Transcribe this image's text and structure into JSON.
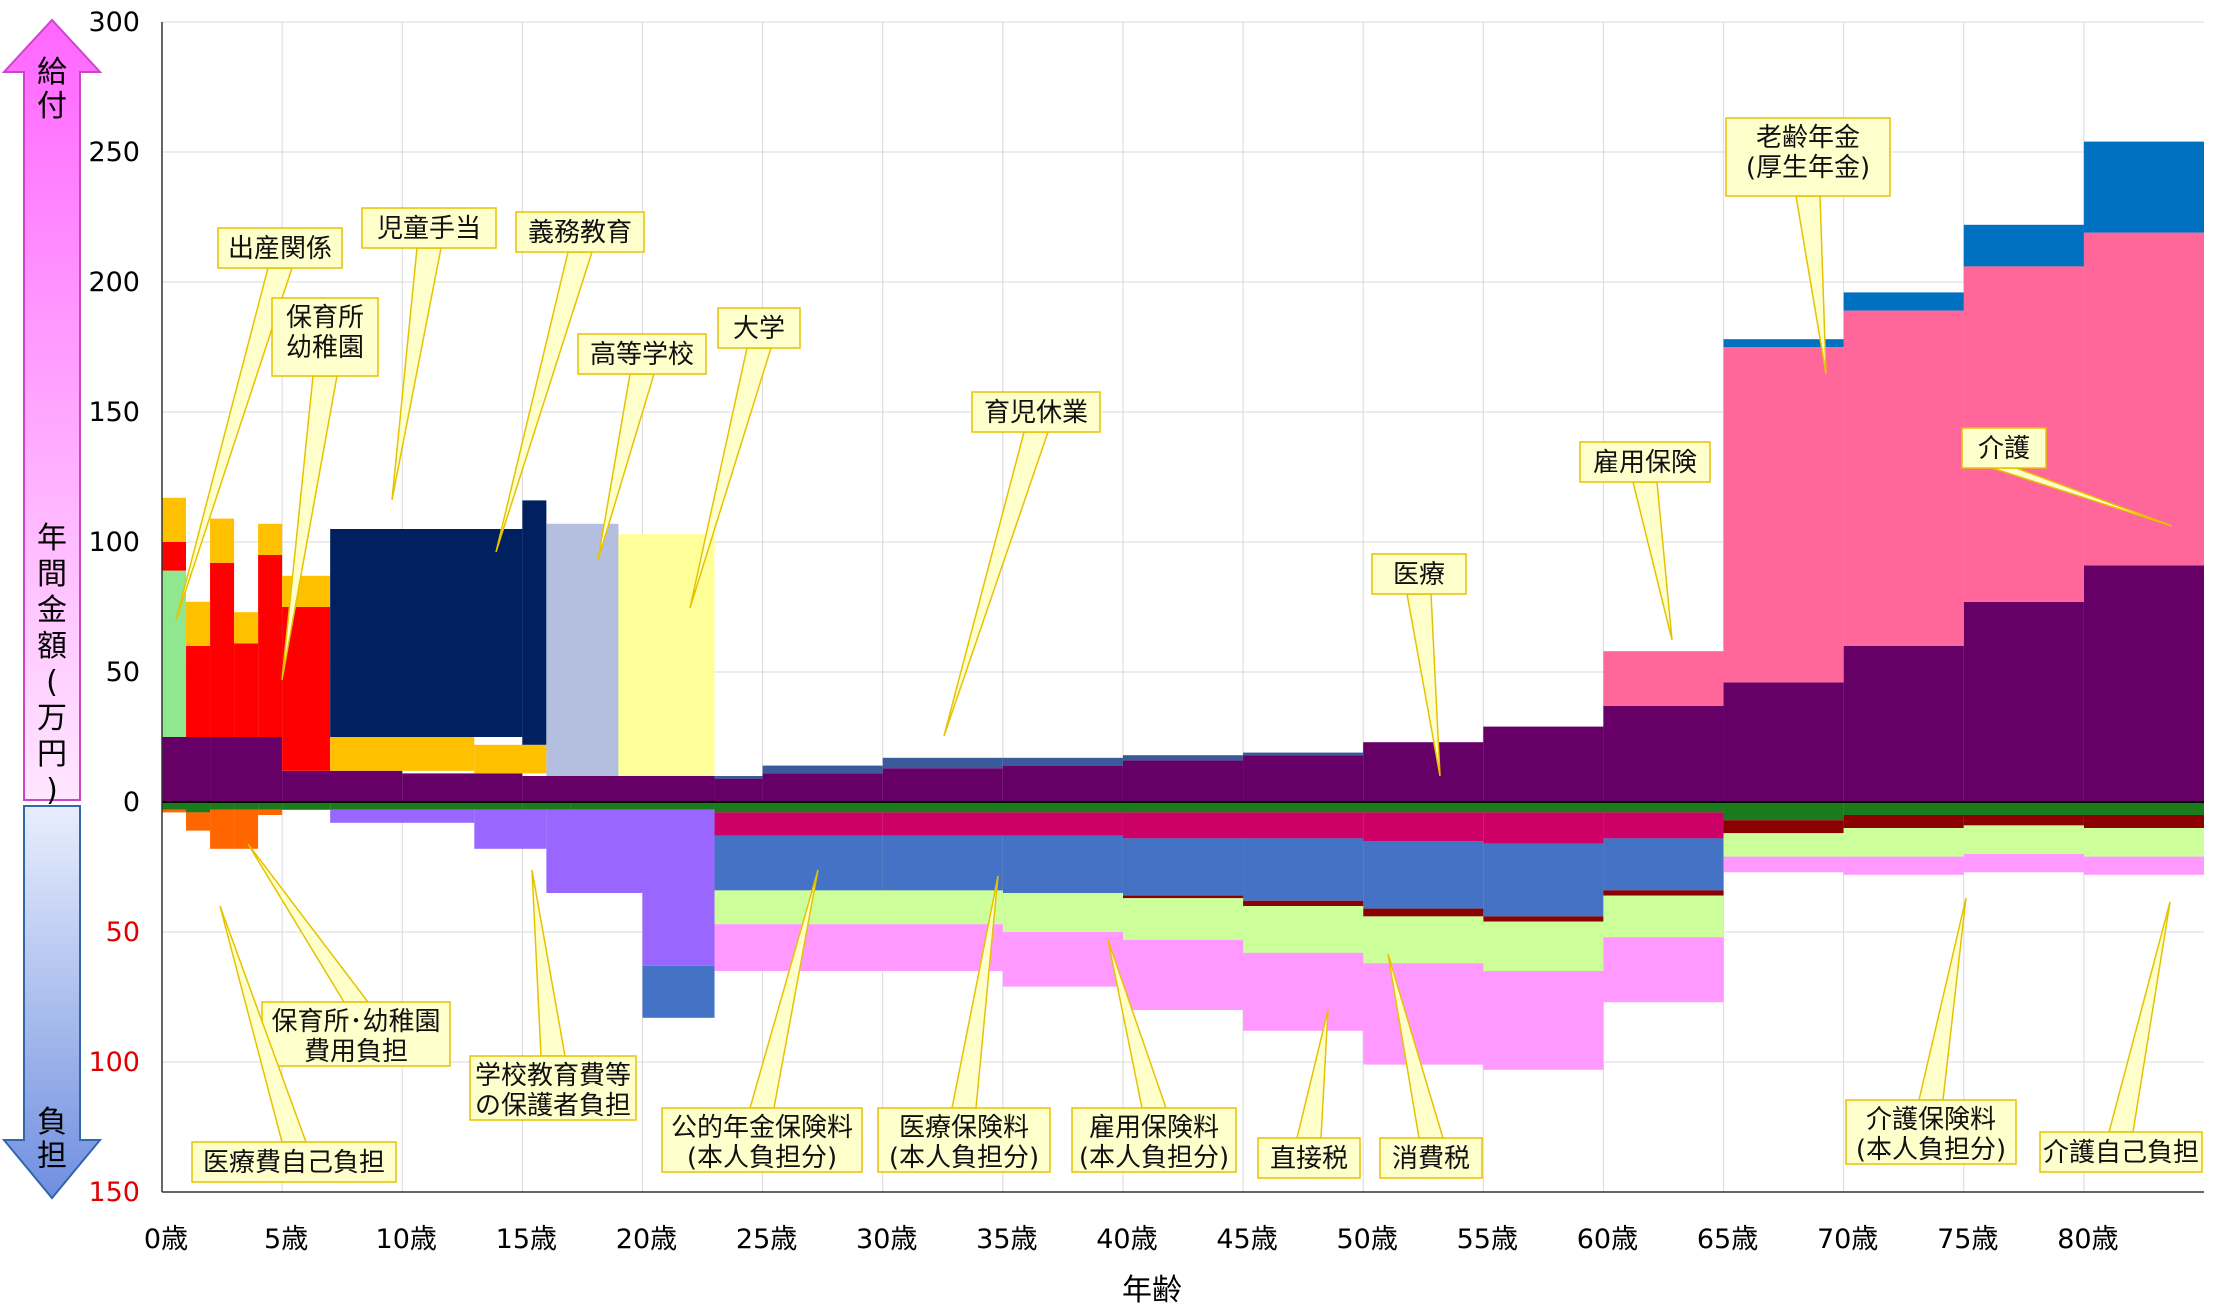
{
  "chart_data": {
    "type": "bar",
    "subtype": "stacked-area-steps-by-age",
    "xlabel": "年齢",
    "ylabel": "年間金額(万円)",
    "positive_label": "給付",
    "negative_label": "負担",
    "ylim": [
      -150,
      300
    ],
    "y_ticks_positive": [
      "300",
      "250",
      "200",
      "150",
      "100",
      "50",
      "0"
    ],
    "y_ticks_negative": [
      "50",
      "100",
      "150"
    ],
    "x_ticks": [
      "0歳",
      "5歳",
      "10歳",
      "15歳",
      "20歳",
      "25歳",
      "30歳",
      "35歳",
      "40歳",
      "45歳",
      "50歳",
      "55歳",
      "60歳",
      "65歳",
      "70歳",
      "75歳",
      "80歳"
    ],
    "x_range": [
      0,
      85
    ],
    "grid": true,
    "colors": {
      "medical": "#660066",
      "birth": "#8fe88f",
      "nursery": "#ff0000",
      "child_allowance": "#ffc000",
      "compulsory_edu": "#002060",
      "high_school": "#b4bfe0",
      "university": "#ffff99",
      "childcare_leave": "#3a5a9a",
      "unemployment": "#ff6699",
      "pension": "#ff6699",
      "pension_top": "#ff6699",
      "nursing": "#0070c0",
      "med_copay": "#1b7a1b",
      "nursery_fee": "#ff6600",
      "school_fee": "#9966ff",
      "pension_premium": "#cc0066",
      "health_premium": "#4472c4",
      "direct_tax": "#8b0000",
      "emp_premium": "#ccff99",
      "consumption_tax": "#ff99ff",
      "nursing_premium": "#e6e6e6"
    },
    "positive_series": [
      {
        "key": "medical",
        "segments": [
          [
            0,
            2,
            25
          ],
          [
            2,
            5,
            25
          ],
          [
            5,
            10,
            12
          ],
          [
            10,
            15,
            11
          ],
          [
            15,
            20,
            10
          ],
          [
            20,
            23,
            10
          ],
          [
            23,
            25,
            9
          ],
          [
            25,
            30,
            11
          ],
          [
            30,
            35,
            13
          ],
          [
            35,
            40,
            14
          ],
          [
            40,
            45,
            16
          ],
          [
            45,
            50,
            18
          ],
          [
            50,
            55,
            23
          ],
          [
            55,
            60,
            29
          ],
          [
            60,
            65,
            37
          ],
          [
            65,
            70,
            46
          ],
          [
            70,
            75,
            60
          ],
          [
            75,
            80,
            77
          ],
          [
            80,
            85,
            91
          ]
        ]
      },
      {
        "key": "birth",
        "segments": [
          [
            0,
            1,
            64
          ]
        ]
      },
      {
        "key": "nursery",
        "segments": [
          [
            0,
            1,
            11
          ],
          [
            1,
            2,
            35
          ],
          [
            2,
            3,
            67
          ],
          [
            3,
            4,
            36
          ],
          [
            4,
            5,
            70
          ],
          [
            5,
            7,
            63
          ]
        ]
      },
      {
        "key": "child_allowance",
        "segments": [
          [
            0,
            1,
            17
          ],
          [
            1,
            2,
            17
          ],
          [
            2,
            3,
            17
          ],
          [
            3,
            4,
            12
          ],
          [
            4,
            5,
            12
          ],
          [
            5,
            7,
            12
          ],
          [
            7,
            13,
            13
          ],
          [
            13,
            16,
            11
          ]
        ]
      },
      {
        "key": "compulsory_edu",
        "segments": [
          [
            7,
            15,
            80
          ],
          [
            15,
            16,
            94
          ]
        ]
      },
      {
        "key": "high_school",
        "segments": [
          [
            16,
            19,
            97
          ]
        ]
      },
      {
        "key": "university",
        "segments": [
          [
            19,
            23,
            93
          ]
        ]
      },
      {
        "key": "childcare_leave",
        "segments": [
          [
            23,
            25,
            1
          ],
          [
            25,
            30,
            3
          ],
          [
            30,
            35,
            4
          ],
          [
            35,
            40,
            3
          ],
          [
            40,
            45,
            2
          ],
          [
            45,
            50,
            1
          ]
        ]
      },
      {
        "key": "unemployment",
        "segments": [
          [
            60,
            65,
            21
          ]
        ]
      },
      {
        "key": "pension",
        "segments": [
          [
            65,
            70,
            129
          ],
          [
            70,
            75,
            129
          ],
          [
            75,
            80,
            129
          ],
          [
            80,
            85,
            128
          ]
        ]
      },
      {
        "key": "nursing",
        "segments": [
          [
            65,
            70,
            3
          ],
          [
            70,
            75,
            7
          ],
          [
            75,
            80,
            16
          ],
          [
            80,
            85,
            35
          ]
        ]
      }
    ],
    "negative_series": [
      {
        "key": "med_copay",
        "segments": [
          [
            0,
            1,
            3
          ],
          [
            1,
            2,
            4
          ],
          [
            2,
            3,
            3
          ],
          [
            3,
            4,
            3
          ],
          [
            4,
            5,
            3
          ],
          [
            5,
            7,
            3
          ],
          [
            7,
            15,
            3
          ],
          [
            15,
            17,
            3
          ],
          [
            17,
            23,
            3
          ],
          [
            23,
            65,
            4
          ],
          [
            65,
            70,
            7
          ],
          [
            70,
            85,
            5
          ]
        ]
      },
      {
        "key": "nursery_fee",
        "segments": [
          [
            0,
            1,
            1
          ],
          [
            1,
            2,
            7
          ],
          [
            2,
            3,
            15
          ],
          [
            3,
            4,
            15
          ],
          [
            4,
            5,
            2
          ],
          [
            5,
            7,
            0
          ]
        ]
      },
      {
        "key": "school_fee",
        "segments": [
          [
            7,
            13,
            5
          ],
          [
            13,
            16,
            15
          ],
          [
            16,
            20,
            32
          ],
          [
            20,
            23,
            60
          ]
        ]
      },
      {
        "key": "health_premium",
        "segments": [
          [
            20,
            23,
            20
          ]
        ]
      },
      {
        "key": "pension_premium",
        "segments": [
          [
            23,
            30,
            9
          ],
          [
            30,
            40,
            9
          ],
          [
            40,
            50,
            10
          ],
          [
            50,
            55,
            11
          ],
          [
            55,
            60,
            12
          ],
          [
            60,
            65,
            10
          ]
        ]
      },
      {
        "key": "health_premium",
        "segments": [
          [
            23,
            30,
            21
          ],
          [
            30,
            35,
            21
          ],
          [
            35,
            40,
            22
          ],
          [
            40,
            45,
            22
          ],
          [
            45,
            50,
            24
          ],
          [
            50,
            55,
            26
          ],
          [
            55,
            60,
            28
          ],
          [
            60,
            65,
            20
          ]
        ]
      },
      {
        "key": "direct_tax",
        "segments": [
          [
            40,
            45,
            1
          ],
          [
            45,
            50,
            2
          ],
          [
            50,
            55,
            3
          ],
          [
            55,
            60,
            2
          ],
          [
            60,
            65,
            2
          ],
          [
            65,
            70,
            5
          ],
          [
            70,
            75,
            5
          ],
          [
            75,
            80,
            4
          ],
          [
            80,
            85,
            5
          ]
        ]
      },
      {
        "key": "emp_premium",
        "segments": [
          [
            23,
            30,
            13
          ],
          [
            30,
            35,
            13
          ],
          [
            35,
            40,
            15
          ],
          [
            40,
            45,
            16
          ],
          [
            45,
            50,
            18
          ],
          [
            50,
            55,
            18
          ],
          [
            55,
            60,
            19
          ],
          [
            60,
            65,
            16
          ],
          [
            65,
            70,
            9
          ],
          [
            70,
            75,
            11
          ],
          [
            75,
            80,
            11
          ],
          [
            80,
            85,
            11
          ]
        ]
      },
      {
        "key": "consumption_tax",
        "segments": [
          [
            23,
            30,
            18
          ],
          [
            30,
            35,
            18
          ],
          [
            35,
            40,
            21
          ],
          [
            40,
            45,
            27
          ],
          [
            45,
            50,
            30
          ],
          [
            50,
            55,
            39
          ],
          [
            55,
            60,
            38
          ],
          [
            60,
            65,
            25
          ],
          [
            65,
            70,
            6
          ],
          [
            70,
            75,
            7
          ],
          [
            75,
            80,
            7
          ],
          [
            80,
            85,
            7
          ]
        ]
      }
    ]
  },
  "annotations": [
    {
      "id": "ann-birth",
      "label": "出産関係"
    },
    {
      "id": "ann-nursery",
      "label": "保育所",
      "label2": "幼稚園"
    },
    {
      "id": "ann-child-allowance",
      "label": "児童手当"
    },
    {
      "id": "ann-compulsory",
      "label": "義務教育"
    },
    {
      "id": "ann-highschool",
      "label": "高等学校"
    },
    {
      "id": "ann-university",
      "label": "大学"
    },
    {
      "id": "ann-childcare-leave",
      "label": "育児休業"
    },
    {
      "id": "ann-unemployment",
      "label": "雇用保険"
    },
    {
      "id": "ann-medical",
      "label": "医療"
    },
    {
      "id": "ann-pension",
      "label": "老齢年金",
      "label2": "(厚生年金)"
    },
    {
      "id": "ann-nursing",
      "label": "介護"
    },
    {
      "id": "ann-nursery-fee",
      "label": "保育所･幼稚園",
      "label2": "費用負担"
    },
    {
      "id": "ann-med-copay",
      "label": "医療費自己負担"
    },
    {
      "id": "ann-school-fee",
      "label": "学校教育費等",
      "label2": "の保護者負担"
    },
    {
      "id": "ann-pension-premium",
      "label": "公的年金保険料",
      "label2": "(本人負担分)"
    },
    {
      "id": "ann-health-premium",
      "label": "医療保険料",
      "label2": "(本人負担分)"
    },
    {
      "id": "ann-emp-premium",
      "label": "雇用保険料",
      "label2": "(本人負担分)"
    },
    {
      "id": "ann-direct-tax",
      "label": "直接税"
    },
    {
      "id": "ann-consumption-tax",
      "label": "消費税"
    },
    {
      "id": "ann-nursing-premium",
      "label": "介護保険料",
      "label2": "(本人負担分)"
    },
    {
      "id": "ann-nursing-copay",
      "label": "介護自己負担"
    }
  ]
}
